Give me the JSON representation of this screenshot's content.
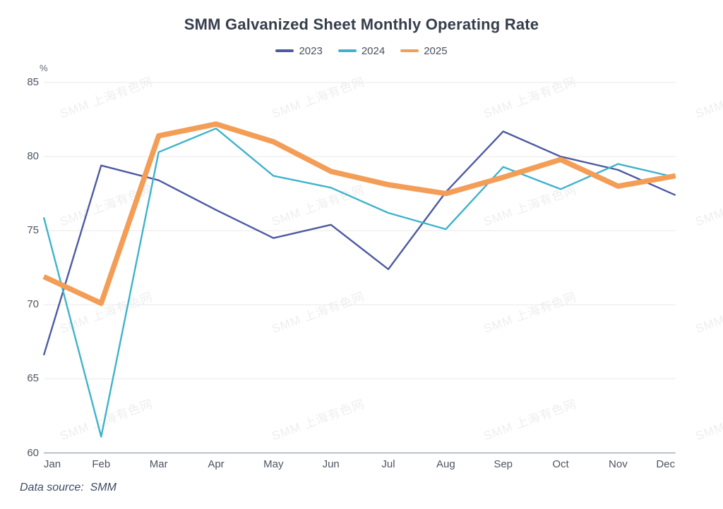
{
  "header": {
    "title": "SMM Galvanized Sheet Monthly Operating Rate"
  },
  "footer": {
    "source_label": "Data source:  SMM"
  },
  "watermark": {
    "text": "SMM 上海有色网"
  },
  "axis": {
    "y_unit": "%",
    "y_tick_labels": [
      "85",
      "80",
      "75",
      "70",
      "65",
      "60"
    ],
    "grid_color": "#e9e9e9",
    "axis_line_color": "#97a0ad",
    "tick_label_color": "#4d5462"
  },
  "chart_data": {
    "type": "line",
    "title": "SMM Galvanized Sheet Monthly Operating Rate",
    "xlabel": "",
    "ylabel": "%",
    "ylim": [
      60,
      85
    ],
    "y_ticks": [
      60,
      65,
      70,
      75,
      80,
      85
    ],
    "grid": true,
    "legend_position": "top",
    "categories": [
      "Jan",
      "Feb",
      "Mar",
      "Apr",
      "May",
      "Jun",
      "Jul",
      "Aug",
      "Sep",
      "Oct",
      "Nov",
      "Dec"
    ],
    "series": [
      {
        "name": "2023",
        "color": "#4D5AA1",
        "line_width": 2.4,
        "values": [
          66.6,
          79.4,
          78.4,
          76.4,
          74.5,
          75.4,
          72.4,
          77.6,
          81.7,
          80.0,
          79.1,
          77.4
        ]
      },
      {
        "name": "2024",
        "color": "#3FB3CB",
        "line_width": 2.4,
        "values": [
          75.9,
          61.1,
          80.3,
          81.9,
          78.7,
          77.9,
          76.2,
          75.1,
          79.3,
          77.8,
          79.5,
          78.6
        ]
      },
      {
        "name": "2025",
        "color": "#F39D56",
        "line_width": 7.5,
        "values": [
          71.9,
          70.1,
          81.4,
          82.2,
          81.0,
          79.0,
          78.1,
          77.5,
          78.6,
          79.8,
          78.0,
          78.7
        ]
      }
    ]
  }
}
